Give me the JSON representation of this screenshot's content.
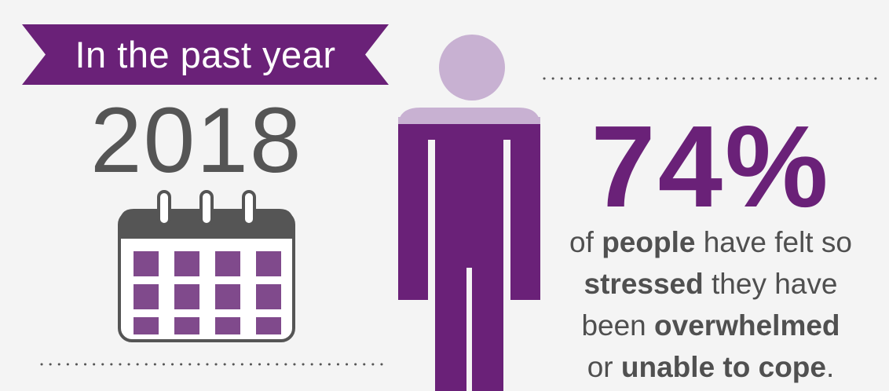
{
  "banner": {
    "text": "In the past year"
  },
  "year": "2018",
  "stat": {
    "value": "74%"
  },
  "description": {
    "line1": {
      "pre": "of ",
      "bold": "people",
      "post": " have felt so"
    },
    "line2": {
      "bold": "stressed",
      "post": " they have"
    },
    "line3": {
      "pre": "been ",
      "bold": "overwhelmed"
    },
    "line4": {
      "pre": "or ",
      "bold": "unable to cope",
      "post": "."
    }
  },
  "colors": {
    "brand_purple": "#6a2178",
    "light_purple": "#c8b1d2",
    "calendar_cell": "#804a8c",
    "dark_gray": "#555555",
    "background": "#f4f4f4"
  },
  "icons": {
    "calendar": "calendar-icon",
    "person": "person-icon",
    "banner": "ribbon-banner"
  }
}
